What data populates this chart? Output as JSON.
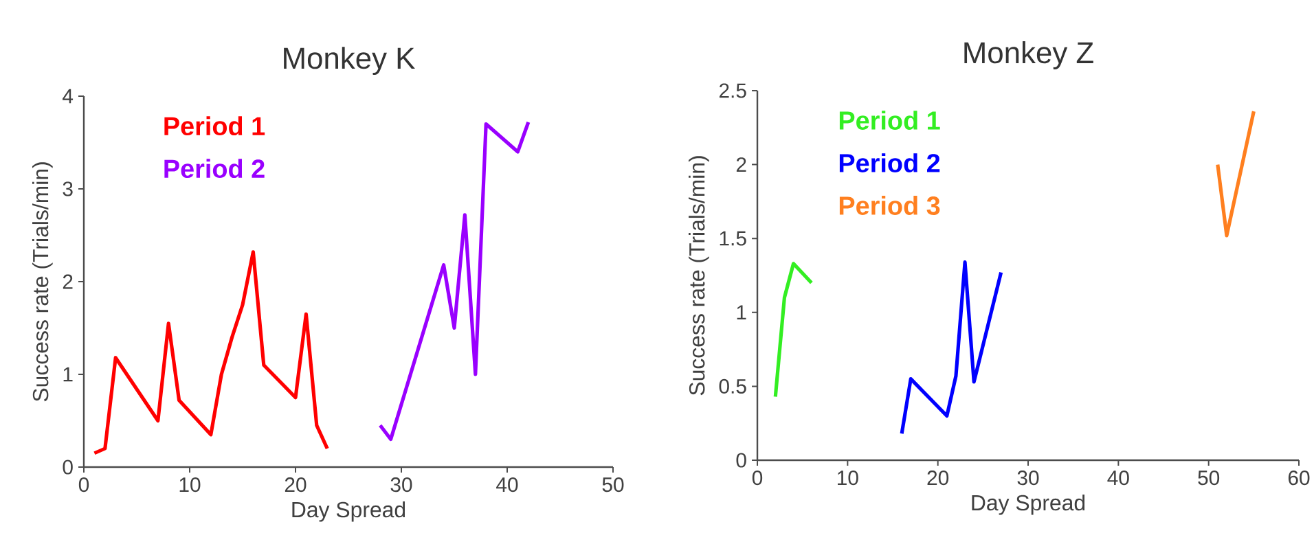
{
  "chart_data": [
    {
      "type": "line",
      "title": "Monkey K",
      "xlabel": "Day Spread",
      "ylabel": "Success rate (Trials/min)",
      "xlim": [
        0,
        50
      ],
      "xticks": [
        0,
        10,
        20,
        30,
        40,
        50
      ],
      "ylim": [
        0,
        4
      ],
      "yticks": [
        0,
        1,
        2,
        3,
        4
      ],
      "legend": "top left",
      "grid": false,
      "marker": "none",
      "series": [
        {
          "name": "Period 1",
          "color": "#ff0000",
          "x": [
            1,
            2,
            3,
            7,
            8,
            9,
            12,
            13,
            14,
            15,
            16,
            17,
            20,
            21,
            22,
            23
          ],
          "values": [
            0.15,
            0.2,
            1.18,
            0.5,
            1.55,
            0.72,
            0.35,
            1.0,
            1.4,
            1.75,
            2.32,
            1.1,
            0.75,
            1.65,
            0.45,
            0.2
          ]
        },
        {
          "name": "Period 2",
          "color": "#9900ff",
          "x": [
            28,
            29,
            34,
            35,
            36,
            37,
            38,
            41,
            42
          ],
          "values": [
            0.45,
            0.3,
            2.18,
            1.5,
            2.72,
            1.0,
            3.7,
            3.4,
            3.72
          ]
        }
      ]
    },
    {
      "type": "line",
      "title": "Monkey Z",
      "xlabel": "Day Spread",
      "ylabel": "Success rate (Trials/min)",
      "xlim": [
        0,
        60
      ],
      "xticks": [
        0,
        10,
        20,
        30,
        40,
        50,
        60
      ],
      "ylim": [
        0,
        2.5
      ],
      "yticks": [
        0,
        0.5,
        1,
        1.5,
        2,
        2.5
      ],
      "legend": "top left",
      "grid": false,
      "marker": "none",
      "series": [
        {
          "name": "Period 1",
          "color": "#33ee22",
          "x": [
            2,
            3,
            4,
            6
          ],
          "values": [
            0.43,
            1.1,
            1.33,
            1.2
          ]
        },
        {
          "name": "Period 2",
          "color": "#0000ff",
          "x": [
            16,
            17,
            21,
            22,
            23,
            24,
            27
          ],
          "values": [
            0.18,
            0.55,
            0.3,
            0.57,
            1.34,
            0.53,
            1.27
          ]
        },
        {
          "name": "Period 3",
          "color": "#ff7f1f",
          "x": [
            51,
            52,
            55
          ],
          "values": [
            2.0,
            1.52,
            2.36
          ]
        }
      ]
    }
  ]
}
